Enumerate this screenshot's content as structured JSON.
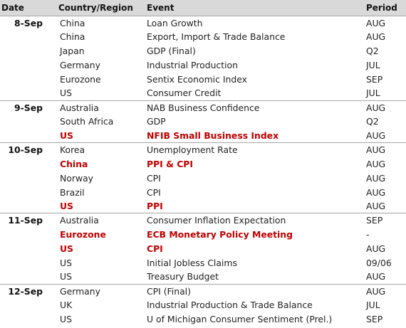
{
  "header": {
    "date": "Date",
    "country": "Country/Region",
    "event": "Event",
    "period": "Period"
  },
  "colors": {
    "header_bg": "#d9d9d9",
    "highlight": "#c00000",
    "text": "#222222",
    "rule": "#a6a6a6"
  },
  "rows": [
    {
      "date": "8-Sep",
      "country": "China",
      "event": "Loan Growth",
      "period": "AUG",
      "highlight": false
    },
    {
      "date": "",
      "country": "China",
      "event": "Export, Import & Trade Balance",
      "period": "AUG",
      "highlight": false
    },
    {
      "date": "",
      "country": "Japan",
      "event": "GDP (Final)",
      "period": "Q2",
      "highlight": false
    },
    {
      "date": "",
      "country": "Germany",
      "event": "Industrial Production",
      "period": "JUL",
      "highlight": false
    },
    {
      "date": "",
      "country": "Eurozone",
      "event": "Sentix Economic Index",
      "period": "SEP",
      "highlight": false
    },
    {
      "date": "",
      "country": "US",
      "event": "Consumer Credit",
      "period": "JUL",
      "highlight": false
    },
    {
      "date": "9-Sep",
      "country": "Australia",
      "event": "NAB Business Confidence",
      "period": "AUG",
      "highlight": false
    },
    {
      "date": "",
      "country": "South Africa",
      "event": "GDP",
      "period": "Q2",
      "highlight": false
    },
    {
      "date": "",
      "country": "US",
      "event": "NFIB Small Business Index",
      "period": "AUG",
      "highlight": true
    },
    {
      "date": "10-Sep",
      "country": "Korea",
      "event": "Unemployment Rate",
      "period": "AUG",
      "highlight": false
    },
    {
      "date": "",
      "country": "China",
      "event": "PPI & CPI",
      "period": "AUG",
      "highlight": true
    },
    {
      "date": "",
      "country": "Norway",
      "event": "CPI",
      "period": "AUG",
      "highlight": false
    },
    {
      "date": "",
      "country": "Brazil",
      "event": "CPI",
      "period": "AUG",
      "highlight": false
    },
    {
      "date": "",
      "country": "US",
      "event": "PPI",
      "period": "AUG",
      "highlight": true
    },
    {
      "date": "11-Sep",
      "country": "Australia",
      "event": "Consumer Inflation Expectation",
      "period": "SEP",
      "highlight": false
    },
    {
      "date": "",
      "country": "Eurozone",
      "event": "ECB Monetary Policy Meeting",
      "period": "-",
      "highlight": true
    },
    {
      "date": "",
      "country": "US",
      "event": "CPI",
      "period": "AUG",
      "highlight": true
    },
    {
      "date": "",
      "country": "US",
      "event": "Initial Jobless Claims",
      "period": "09/06",
      "highlight": false
    },
    {
      "date": "",
      "country": "US",
      "event": "Treasury Budget",
      "period": "AUG",
      "highlight": false
    },
    {
      "date": "12-Sep",
      "country": "Germany",
      "event": "CPI (Final)",
      "period": "AUG",
      "highlight": false
    },
    {
      "date": "",
      "country": "UK",
      "event": "Industrial Production & Trade Balance",
      "period": "JUL",
      "highlight": false
    },
    {
      "date": "",
      "country": "US",
      "event": "U of Michigan Consumer Sentiment (Prel.)",
      "period": "SEP",
      "highlight": false
    }
  ]
}
